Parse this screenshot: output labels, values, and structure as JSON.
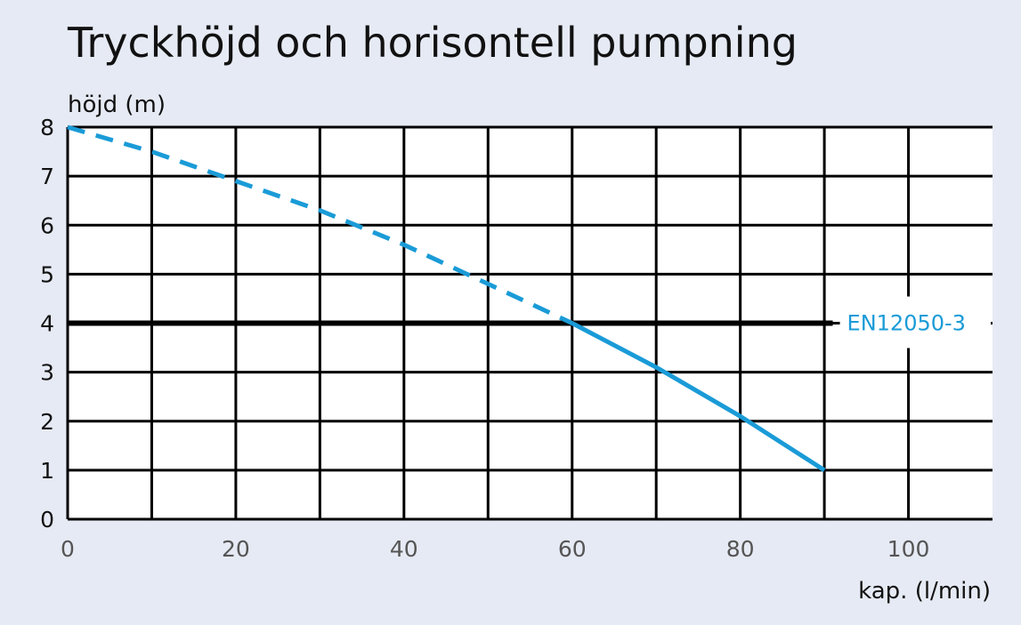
{
  "chart_data": {
    "type": "line",
    "title": "Tryckhöjd och horisontell pumpning",
    "xlabel": "kap. (l/min)",
    "ylabel": "höjd (m)",
    "xlim": [
      0,
      110
    ],
    "ylim": [
      0,
      8
    ],
    "x_ticks": [
      0,
      20,
      40,
      60,
      80,
      100
    ],
    "x_tick_labels": [
      "0",
      "20",
      "40",
      "60",
      "80",
      "100"
    ],
    "y_ticks": [
      0,
      1,
      2,
      3,
      4,
      5,
      6,
      7,
      8
    ],
    "y_tick_labels": [
      "0",
      "1",
      "2",
      "3",
      "4",
      "5",
      "6",
      "7",
      "8"
    ],
    "x_gridlines": [
      10,
      20,
      30,
      40,
      50,
      60,
      70,
      80,
      90,
      100
    ],
    "y_gridlines": [
      1,
      2,
      3,
      4,
      5,
      6,
      7,
      8
    ],
    "grid": true,
    "series": [
      {
        "style": "dashed",
        "color": "#1a9bd7",
        "x": [
          0,
          10,
          20,
          30,
          40,
          50,
          60
        ],
        "y": [
          8.0,
          7.5,
          6.9,
          6.3,
          5.6,
          4.8,
          4.0
        ]
      },
      {
        "style": "solid",
        "color": "#1a9bd7",
        "x": [
          60,
          70,
          80,
          90
        ],
        "y": [
          4.0,
          3.1,
          2.1,
          1.0
        ]
      }
    ],
    "reference_line": {
      "y": 4,
      "x_end": 91,
      "color": "#000000",
      "label": "EN12050-3",
      "label_color": "#1a9bd7"
    }
  }
}
